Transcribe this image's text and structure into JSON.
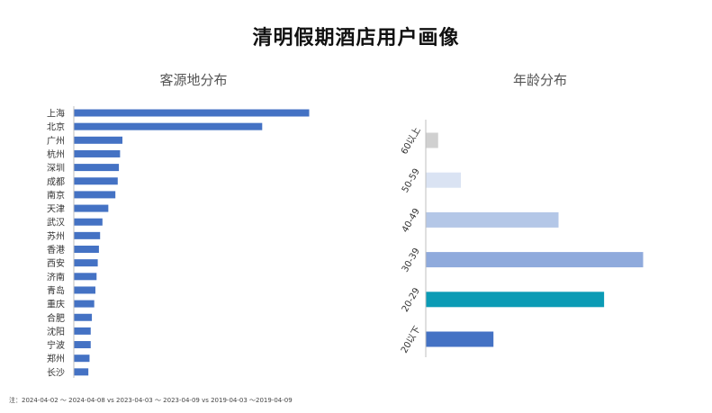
{
  "page": {
    "title": "清明假期酒店用户画像",
    "footnote": "注：2024-04-02 ～ 2024-04-08 vs 2023-04-03 ～ 2023-04-09 vs 2019-04-03 ～2019-04-09"
  },
  "chart_data": [
    {
      "type": "bar",
      "orientation": "horizontal",
      "title": "客源地分布",
      "categories": [
        "上海",
        "北京",
        "广州",
        "杭州",
        "深圳",
        "成都",
        "南京",
        "天津",
        "武汉",
        "苏州",
        "香港",
        "西安",
        "济南",
        "青岛",
        "重庆",
        "合肥",
        "沈阳",
        "宁波",
        "郑州",
        "长沙"
      ],
      "values": [
        100,
        80,
        20.5,
        19.5,
        19,
        18.5,
        17.5,
        14.5,
        12,
        11,
        10.5,
        10,
        9.5,
        9,
        8.5,
        7.5,
        7,
        7,
        6.5,
        6
      ],
      "xlim": [
        0,
        100
      ],
      "color": "#4472c4",
      "grid": false,
      "value_axis_labels": false
    },
    {
      "type": "bar",
      "orientation": "horizontal",
      "title": "年龄分布",
      "categories": [
        "60以上",
        "50-59",
        "40-49",
        "30-39",
        "20-29",
        "20以下"
      ],
      "values": [
        5.5,
        16,
        61,
        100,
        82,
        31
      ],
      "xlim": [
        0,
        100
      ],
      "colors": [
        "#d0d0d0",
        "#dae3f3",
        "#b4c7e7",
        "#8faadc",
        "#0b9bb5",
        "#4472c4"
      ],
      "grid": false,
      "value_axis_labels": false
    }
  ]
}
